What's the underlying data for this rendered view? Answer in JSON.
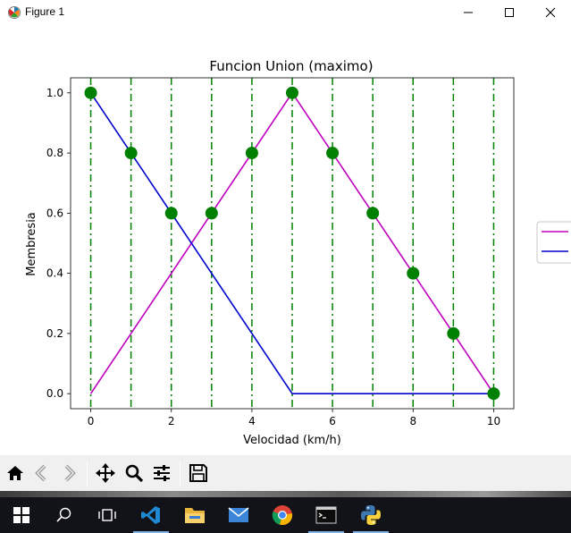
{
  "window": {
    "title": "Figure 1",
    "icons": {
      "app": "matplotlib-icon",
      "minimize": "minimize-icon",
      "maximize": "maximize-icon",
      "close": "close-icon"
    }
  },
  "chart_data": {
    "type": "line",
    "title": "Funcion Union (maximo)",
    "xlabel": "Velocidad (km/h)",
    "ylabel": "Membresia",
    "xlim": [
      -0.5,
      10.5
    ],
    "ylim": [
      -0.05,
      1.05
    ],
    "xticks": [
      0,
      2,
      4,
      6,
      8,
      10
    ],
    "xtick_labels": [
      "0",
      "2",
      "4",
      "6",
      "8",
      "10"
    ],
    "yticks": [
      0.0,
      0.2,
      0.4,
      0.6,
      0.8,
      1.0
    ],
    "ytick_labels": [
      "0.0",
      "0.2",
      "0.4",
      "0.6",
      "0.8",
      "1.0"
    ],
    "series": [
      {
        "color": "#bf00bf",
        "x": [
          0,
          5,
          10
        ],
        "y": [
          0,
          1,
          0
        ]
      },
      {
        "color": "#0000cc",
        "x": [
          0,
          5,
          10
        ],
        "y": [
          1,
          0,
          0
        ]
      }
    ],
    "markers": {
      "color": "#008000",
      "x": [
        0,
        1,
        2,
        3,
        4,
        5,
        6,
        7,
        8,
        9,
        10
      ],
      "y": [
        1.0,
        0.8,
        0.6,
        0.6,
        0.8,
        1.0,
        0.8,
        0.6,
        0.4,
        0.2,
        0.0
      ]
    },
    "vlines": {
      "color": "#008000",
      "style": "dash-dot",
      "x": [
        0,
        1,
        2,
        3,
        4,
        5,
        6,
        7,
        8,
        9,
        10
      ]
    },
    "legend": {
      "placement": "outside-right",
      "entries": [
        {
          "label": "",
          "color": "#bf00bf"
        },
        {
          "label": "",
          "color": "#0000cc"
        }
      ]
    },
    "grid": false
  },
  "toolbar": {
    "buttons": [
      {
        "name": "home-button",
        "icon": "home-icon"
      },
      {
        "name": "back-button",
        "icon": "back-arrow-icon"
      },
      {
        "name": "forward-button",
        "icon": "forward-arrow-icon"
      },
      {
        "name": "pan-button",
        "icon": "move-icon"
      },
      {
        "name": "zoom-button",
        "icon": "magnifier-icon"
      },
      {
        "name": "configure-subplots-button",
        "icon": "sliders-icon"
      },
      {
        "name": "save-button",
        "icon": "floppy-icon"
      }
    ]
  },
  "taskbar": {
    "items": [
      {
        "name": "start-button",
        "icon": "windows-logo-icon"
      },
      {
        "name": "search-button",
        "icon": "search-icon"
      },
      {
        "name": "task-view-button",
        "icon": "task-view-icon"
      },
      {
        "name": "vscode-button",
        "icon": "vscode-icon",
        "active": true
      },
      {
        "name": "file-explorer-button",
        "icon": "folder-icon"
      },
      {
        "name": "mail-button",
        "icon": "mail-icon"
      },
      {
        "name": "chrome-button",
        "icon": "chrome-icon"
      },
      {
        "name": "terminal-button",
        "icon": "terminal-icon",
        "active": true
      },
      {
        "name": "python-button",
        "icon": "python-icon",
        "active": true
      }
    ],
    "colors": {
      "background": "#111318",
      "active_underline": "#7fb2e5"
    }
  }
}
